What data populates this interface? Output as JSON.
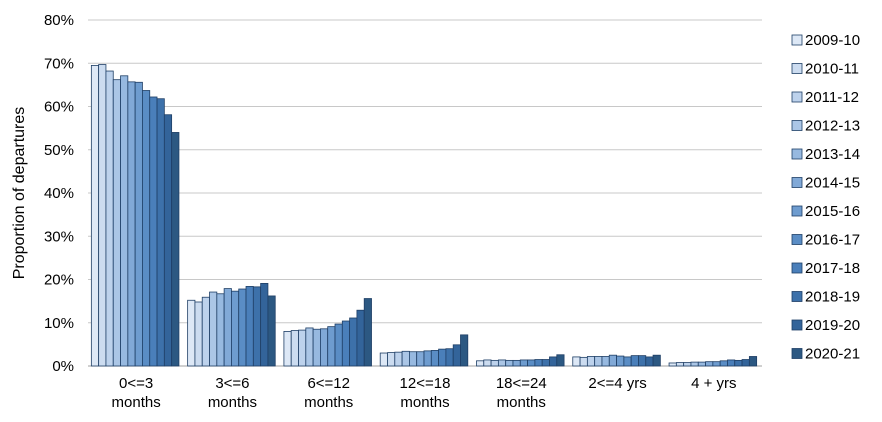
{
  "chart_data": {
    "type": "bar",
    "title": "",
    "xlabel": "",
    "ylabel": "Proportion of departures",
    "ylim": [
      0,
      80
    ],
    "y_ticks": [
      0,
      10,
      20,
      30,
      40,
      50,
      60,
      70,
      80
    ],
    "y_tick_labels": [
      "0%",
      "10%",
      "20%",
      "30%",
      "40%",
      "50%",
      "60%",
      "70%",
      "80%"
    ],
    "grid": true,
    "legend_position": "right",
    "categories": [
      [
        "0<=3",
        "months"
      ],
      [
        "3<=6",
        "months"
      ],
      [
        "6<=12",
        "months"
      ],
      [
        "12<=18",
        "months"
      ],
      [
        "18<=24",
        "months"
      ],
      [
        "2<=4 yrs"
      ],
      [
        "4 + yrs"
      ]
    ],
    "series": [
      {
        "name": "2009-10",
        "color": "#dde8f6",
        "values": [
          69.5,
          15.2,
          8.0,
          3.0,
          1.2,
          2.1,
          0.7
        ]
      },
      {
        "name": "2010-11",
        "color": "#ccdcf0",
        "values": [
          69.7,
          14.8,
          8.2,
          3.1,
          1.4,
          2.0,
          0.8
        ]
      },
      {
        "name": "2011-12",
        "color": "#bdd2ec",
        "values": [
          68.2,
          15.9,
          8.3,
          3.2,
          1.3,
          2.2,
          0.8
        ]
      },
      {
        "name": "2012-13",
        "color": "#abc6e6",
        "values": [
          66.2,
          17.1,
          8.8,
          3.4,
          1.4,
          2.2,
          0.9
        ]
      },
      {
        "name": "2013-14",
        "color": "#97b9e0",
        "values": [
          67.1,
          16.7,
          8.5,
          3.3,
          1.3,
          2.2,
          0.9
        ]
      },
      {
        "name": "2014-15",
        "color": "#81a9d7",
        "values": [
          65.7,
          17.9,
          8.6,
          3.3,
          1.3,
          2.5,
          1.0
        ]
      },
      {
        "name": "2015-16",
        "color": "#6e9ccf",
        "values": [
          65.6,
          17.3,
          9.1,
          3.5,
          1.4,
          2.3,
          1.0
        ]
      },
      {
        "name": "2016-17",
        "color": "#5a8dc5",
        "values": [
          63.7,
          17.8,
          9.7,
          3.6,
          1.4,
          2.1,
          1.2
        ]
      },
      {
        "name": "2017-18",
        "color": "#4a7fba",
        "values": [
          62.2,
          18.4,
          10.4,
          3.9,
          1.5,
          2.4,
          1.4
        ]
      },
      {
        "name": "2018-19",
        "color": "#3d71aa",
        "values": [
          61.8,
          18.3,
          11.1,
          4.0,
          1.5,
          2.4,
          1.3
        ]
      },
      {
        "name": "2019-20",
        "color": "#33649a",
        "values": [
          58.1,
          19.1,
          12.9,
          4.9,
          2.1,
          2.1,
          1.5
        ]
      },
      {
        "name": "2020-21",
        "color": "#2c5882",
        "values": [
          54.0,
          16.2,
          15.6,
          7.2,
          2.6,
          2.5,
          2.2
        ]
      }
    ]
  }
}
